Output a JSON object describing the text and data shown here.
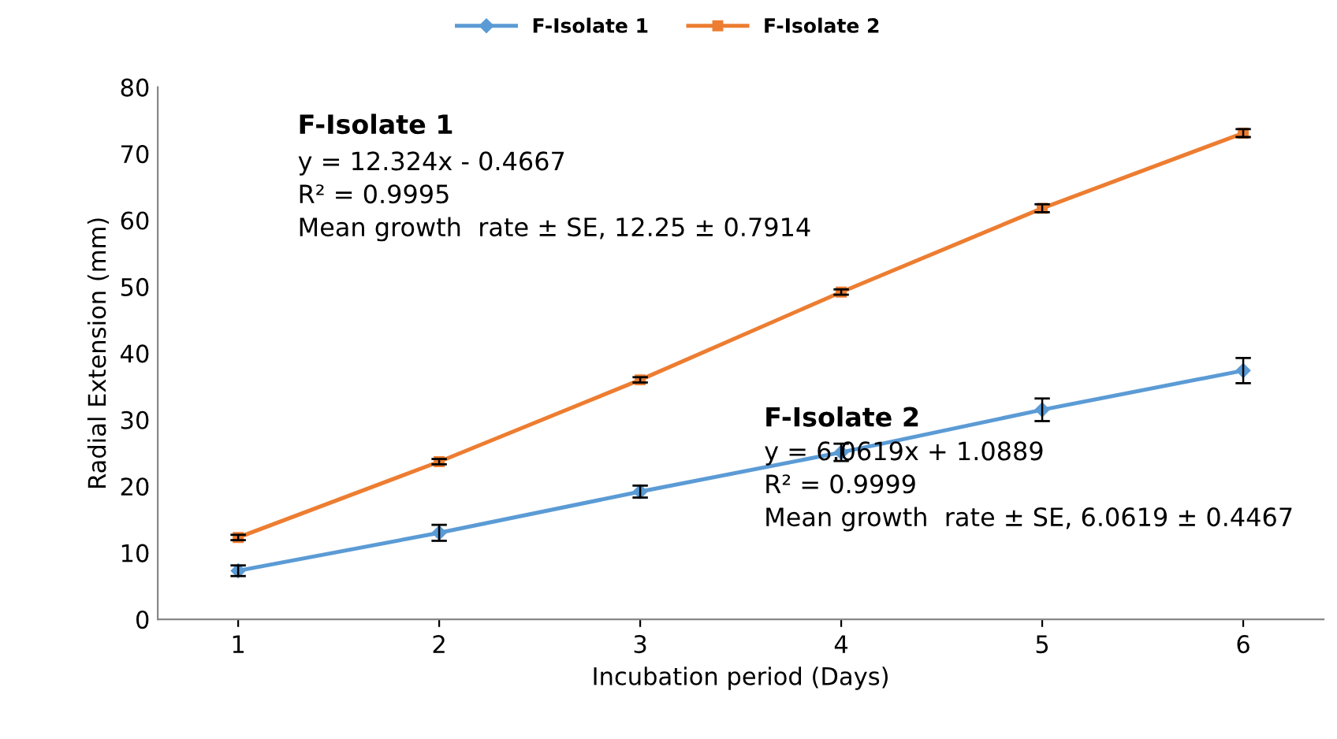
{
  "chart_data": {
    "type": "line",
    "xlabel": "Incubation period (Days)",
    "ylabel": "Radial Extension (mm)",
    "categories": [
      "1",
      "2",
      "3",
      "4",
      "5",
      "6"
    ],
    "series": [
      {
        "name": "F-Isolate 1",
        "color": "#5b9bd5",
        "marker": "diamond",
        "values": [
          7.3,
          13.0,
          19.2,
          25.1,
          31.5,
          37.4
        ],
        "errors": [
          0.8,
          1.2,
          0.9,
          1.3,
          1.7,
          1.9
        ]
      },
      {
        "name": "F-Isolate 2",
        "color": "#ed7d31",
        "marker": "square",
        "values": [
          12.3,
          23.7,
          36.0,
          49.2,
          61.8,
          73.1
        ],
        "errors": [
          0.4,
          0.4,
          0.4,
          0.4,
          0.6,
          0.6
        ]
      }
    ],
    "ylim": [
      0,
      80
    ],
    "yticks": [
      0,
      10,
      20,
      30,
      40,
      50,
      60,
      70,
      80
    ],
    "grid": false,
    "legend": "top",
    "line_style": "solid",
    "annotations": [
      "F-Isolate 1",
      "y = 12.324x - 0.4667\nR² = 0.9995\nMean growth  rate ± SE, 12.25 ± 0.7914",
      "F-Isolate 2",
      "y = 6.0619x + 1.0889\nR² = 0.9999\nMean growth  rate ± SE, 6.0619 ± 0.4467"
    ]
  }
}
